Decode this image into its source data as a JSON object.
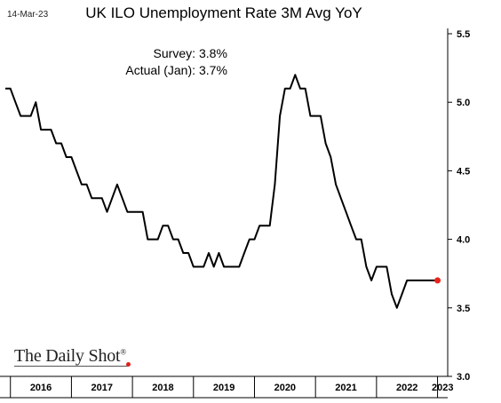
{
  "header": {
    "date_stamp": "14-Mar-23",
    "title": "UK ILO Unemployment Rate 3M Avg YoY"
  },
  "annotations": [
    {
      "label": "Survey:",
      "value": "3.8%"
    },
    {
      "label": "Actual (Jan):",
      "value": "3.7%"
    }
  ],
  "logo": {
    "text": "The Daily Shot",
    "mark": "®"
  },
  "colors": {
    "line": "#000000",
    "last_point": "#e8231b",
    "axis": "#000000"
  },
  "chart_data": {
    "type": "line",
    "title": "UK ILO Unemployment Rate 3M Avg YoY",
    "xlabel": "",
    "ylabel": "",
    "ylim": [
      3.0,
      5.5
    ],
    "y_ticks": [
      "3.0",
      "3.5",
      "4.0",
      "4.5",
      "5.0",
      "5.5"
    ],
    "x_ticks": [
      "2016",
      "2017",
      "2018",
      "2019",
      "2020",
      "2021",
      "2022",
      "2023"
    ],
    "xlim": [
      "2015-12",
      "2023-03"
    ],
    "grid": false,
    "legend": "none",
    "series": [
      {
        "x": [
          "2015-12",
          "2016-01",
          "2016-02",
          "2016-03",
          "2016-04",
          "2016-05",
          "2016-06",
          "2016-07",
          "2016-08",
          "2016-09",
          "2016-10",
          "2016-11",
          "2016-12",
          "2017-01",
          "2017-02",
          "2017-03",
          "2017-04",
          "2017-05",
          "2017-06",
          "2017-07",
          "2017-08",
          "2017-09",
          "2017-10",
          "2017-11",
          "2017-12",
          "2018-01",
          "2018-02",
          "2018-03",
          "2018-04",
          "2018-05",
          "2018-06",
          "2018-07",
          "2018-08",
          "2018-09",
          "2018-10",
          "2018-11",
          "2018-12",
          "2019-01",
          "2019-02",
          "2019-03",
          "2019-04",
          "2019-05",
          "2019-06",
          "2019-07",
          "2019-08",
          "2019-09",
          "2019-10",
          "2019-11",
          "2019-12",
          "2020-01",
          "2020-02",
          "2020-03",
          "2020-04",
          "2020-05",
          "2020-06",
          "2020-07",
          "2020-08",
          "2020-09",
          "2020-10",
          "2020-11",
          "2020-12",
          "2021-01",
          "2021-02",
          "2021-03",
          "2021-04",
          "2021-05",
          "2021-06",
          "2021-07",
          "2021-08",
          "2021-09",
          "2021-10",
          "2021-11",
          "2021-12",
          "2022-01",
          "2022-02",
          "2022-03",
          "2022-04",
          "2022-05",
          "2022-06",
          "2022-07",
          "2022-08",
          "2022-09",
          "2022-10",
          "2022-11",
          "2022-12",
          "2023-01"
        ],
        "values": [
          5.1,
          5.1,
          5.0,
          4.9,
          4.9,
          4.9,
          5.0,
          4.8,
          4.8,
          4.8,
          4.7,
          4.7,
          4.6,
          4.6,
          4.5,
          4.4,
          4.4,
          4.3,
          4.3,
          4.3,
          4.2,
          4.3,
          4.4,
          4.3,
          4.2,
          4.2,
          4.2,
          4.2,
          4.0,
          4.0,
          4.0,
          4.1,
          4.1,
          4.0,
          4.0,
          3.9,
          3.9,
          3.8,
          3.8,
          3.8,
          3.9,
          3.8,
          3.9,
          3.8,
          3.8,
          3.8,
          3.8,
          3.9,
          4.0,
          4.0,
          4.1,
          4.1,
          4.1,
          4.4,
          4.9,
          5.1,
          5.1,
          5.2,
          5.1,
          5.1,
          4.9,
          4.9,
          4.9,
          4.7,
          4.6,
          4.4,
          4.3,
          4.2,
          4.1,
          4.0,
          4.0,
          3.8,
          3.7,
          3.8,
          3.8,
          3.8,
          3.6,
          3.5,
          3.6,
          3.7,
          3.7,
          3.7,
          3.7,
          3.7,
          3.7,
          3.7
        ]
      }
    ]
  }
}
